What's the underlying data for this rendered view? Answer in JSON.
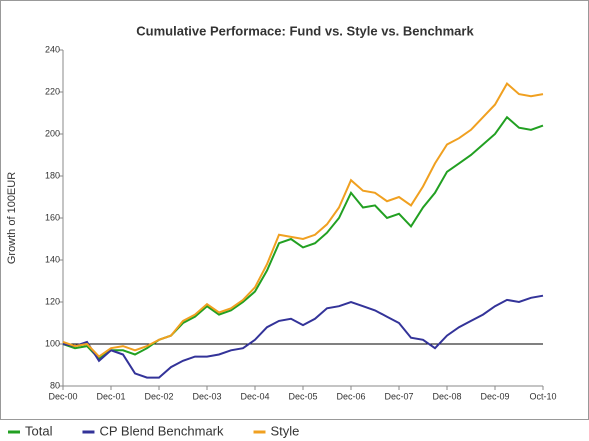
{
  "chart_data": {
    "type": "line",
    "title": "Cumulative Performace: Fund vs. Style vs. Benchmark",
    "y_label": "Growth of 100EUR",
    "categories": [
      "Dec-00",
      null,
      null,
      null,
      "Dec-01",
      null,
      null,
      null,
      "Dec-02",
      null,
      null,
      null,
      "Dec-03",
      null,
      null,
      null,
      "Dec-04",
      null,
      null,
      null,
      "Dec-05",
      null,
      null,
      null,
      "Dec-06",
      null,
      null,
      null,
      "Dec-07",
      null,
      null,
      null,
      "Dec-08",
      null,
      null,
      null,
      "Dec-09",
      null,
      null,
      null,
      "Oct-10"
    ],
    "series": [
      {
        "name": "Total",
        "color": "#22a022",
        "values": [
          100,
          98,
          99,
          93,
          97,
          97,
          95,
          98,
          102,
          104,
          110,
          113,
          118,
          114,
          116,
          120,
          125,
          135,
          148,
          150,
          146,
          148,
          153,
          160,
          172,
          165,
          166,
          160,
          162,
          156,
          165,
          172,
          182,
          186,
          190,
          195,
          200,
          208,
          203,
          202,
          204
        ]
      },
      {
        "name": "CP Blend Benchmark",
        "color": "#333399",
        "values": [
          100,
          99,
          101,
          92,
          97,
          95,
          86,
          84,
          84,
          89,
          92,
          94,
          94,
          95,
          97,
          98,
          102,
          108,
          111,
          112,
          109,
          112,
          117,
          118,
          120,
          118,
          116,
          113,
          110,
          103,
          102,
          98,
          104,
          108,
          111,
          114,
          118,
          121,
          120,
          122,
          123
        ]
      },
      {
        "name": "Style",
        "color": "#f0a020",
        "values": [
          101,
          99,
          100,
          94,
          98,
          99,
          97,
          99,
          102,
          104,
          111,
          114,
          119,
          115,
          117,
          121,
          127,
          138,
          152,
          151,
          150,
          152,
          157,
          165,
          178,
          173,
          172,
          168,
          170,
          166,
          175,
          186,
          195,
          198,
          202,
          208,
          214,
          224,
          219,
          218,
          219
        ]
      }
    ],
    "hline": 100,
    "ylim": [
      80,
      240
    ],
    "yticks": [
      80,
      100,
      120,
      140,
      160,
      180,
      200,
      220,
      240
    ],
    "legend": "bottom-left"
  }
}
